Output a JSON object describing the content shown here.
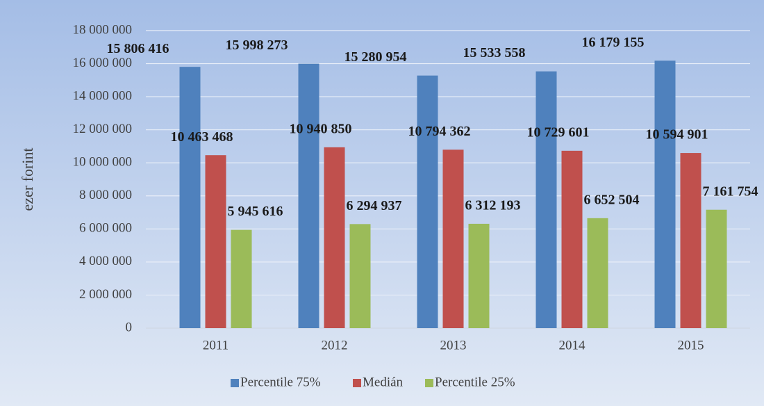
{
  "chart_data": {
    "type": "bar",
    "y_label": "ezer forint",
    "categories": [
      "2011",
      "2012",
      "2013",
      "2014",
      "2015"
    ],
    "series": [
      {
        "name": "Percentile 75%",
        "color": "#4f81bd",
        "values": [
          15806416,
          15998273,
          15280954,
          15533558,
          16179155
        ],
        "value_labels": [
          "15 806 416",
          "15 998 273",
          "15 280 954",
          "15 533 558",
          "16 179 155"
        ]
      },
      {
        "name": "Medián",
        "color": "#c0504d",
        "values": [
          10463468,
          10940850,
          10794362,
          10729601,
          10594901
        ],
        "value_labels": [
          "10 463 468",
          "10 940 850",
          "10 794 362",
          "10 729 601",
          "10 594 901"
        ]
      },
      {
        "name": "Percentile 25%",
        "color": "#9bbb59",
        "values": [
          5945616,
          6294937,
          6312193,
          6652504,
          7161754
        ],
        "value_labels": [
          "5 945 616",
          "6 294 937",
          "6 312 193",
          "6 652 504",
          "7 161 754"
        ]
      }
    ],
    "ylim": [
      0,
      18000000
    ],
    "yticks": [
      0,
      {
        "value": 2000000,
        "label": "2 000 000"
      },
      {
        "value": 4000000,
        "label": "4 000 000"
      },
      {
        "value": 6000000,
        "label": "6 000 000"
      },
      {
        "value": 8000000,
        "label": "8 000 000"
      },
      {
        "value": 10000000,
        "label": "10 000 000"
      },
      {
        "value": 12000000,
        "label": "12 000 000"
      },
      {
        "value": 14000000,
        "label": "14 000 000"
      },
      {
        "value": 16000000,
        "label": "16 000 000"
      },
      {
        "value": 18000000,
        "label": "18 000 000"
      }
    ],
    "grid": true,
    "legend": "bottom"
  }
}
